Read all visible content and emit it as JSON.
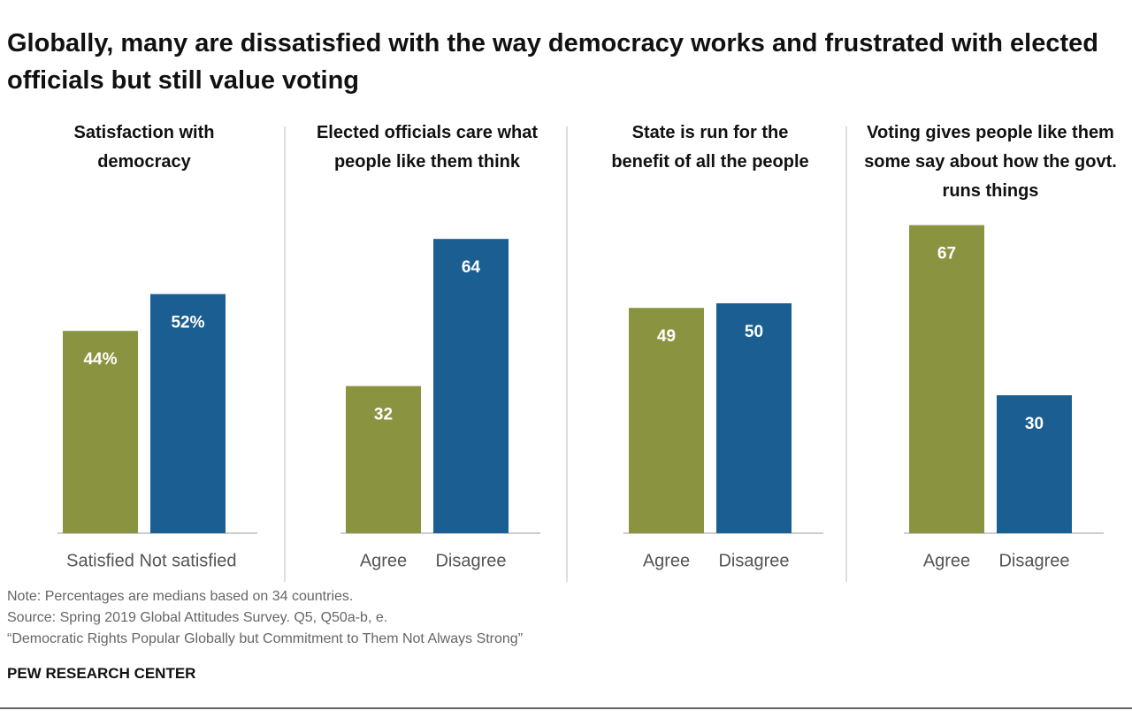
{
  "title": "Globally, many are dissatisfied with the way democracy works and frustrated with elected officials but still value voting",
  "notes": [
    "Note: Percentages are medians based on 34 countries.",
    "Source: Spring 2019 Global Attitudes Survey. Q5, Q50a-b, e.",
    "“Democratic Rights Popular Globally but Commitment to Them Not Always Strong”"
  ],
  "brand": "PEW RESEARCH CENTER",
  "chart_data": [
    {
      "type": "bar",
      "title": "Satisfaction with democracy",
      "categories": [
        "Satisfied",
        "Not satisfied"
      ],
      "values": [
        44,
        52
      ],
      "value_labels": [
        "44%",
        "52%"
      ],
      "colors": [
        "#8a9440",
        "#1b5e91"
      ]
    },
    {
      "type": "bar",
      "title": "Elected officials care what people like them think",
      "categories": [
        "Agree",
        "Disagree"
      ],
      "values": [
        32,
        64
      ],
      "colors": [
        "#8a9440",
        "#1b5e91"
      ]
    },
    {
      "type": "bar",
      "title": "State is run for the benefit of all the people",
      "categories": [
        "Agree",
        "Disagree"
      ],
      "values": [
        49,
        50
      ],
      "colors": [
        "#8a9440",
        "#1b5e91"
      ]
    },
    {
      "type": "bar",
      "title": "Voting gives people like them some say about how the govt. runs things",
      "categories": [
        "Agree",
        "Disagree"
      ],
      "values": [
        67,
        30
      ],
      "colors": [
        "#8a9440",
        "#1b5e91"
      ]
    }
  ]
}
